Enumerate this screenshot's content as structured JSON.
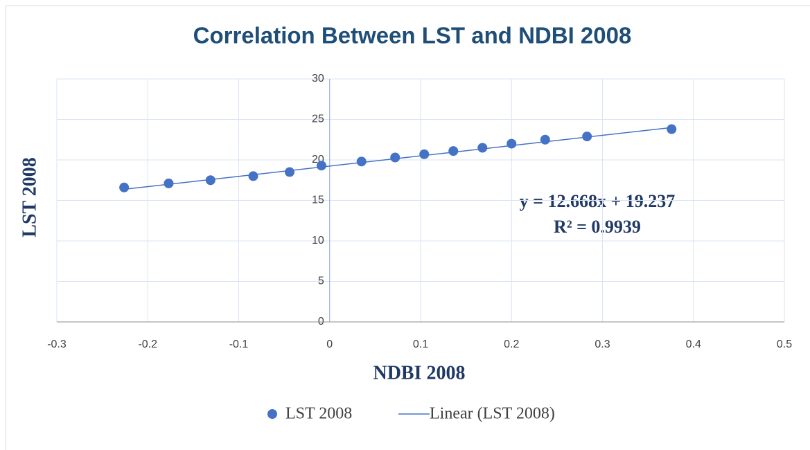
{
  "chart_data": {
    "type": "scatter",
    "title": "Correlation Between LST and NDBI 2008",
    "x_label": "NDBI 2008",
    "y_label": "LST 2008",
    "series": [
      {
        "name": "LST 2008",
        "color": "#4472c4",
        "x": [
          -0.226,
          -0.177,
          -0.131,
          -0.084,
          -0.044,
          -0.009,
          0.035,
          0.072,
          0.104,
          0.136,
          0.168,
          0.2,
          0.237,
          0.283,
          0.376
        ],
        "values": [
          16.6,
          17.1,
          17.5,
          18.0,
          18.5,
          19.3,
          19.8,
          20.3,
          20.7,
          21.1,
          21.5,
          22.0,
          22.5,
          22.9,
          23.8
        ]
      }
    ],
    "trendline": {
      "name": "Linear (LST 2008)",
      "color": "#4472c4",
      "slope": 12.668,
      "intercept": 19.237,
      "equation": "y = 12.668x + 19.237",
      "r_squared": "R² = 0.9939"
    },
    "xlim": [
      -0.3,
      0.5
    ],
    "xticks": [
      -0.3,
      -0.2,
      -0.1,
      0,
      0.1,
      0.2,
      0.3,
      0.4,
      0.5
    ],
    "ylim": [
      0,
      30
    ],
    "yticks": [
      0,
      5,
      10,
      15,
      20,
      25,
      30
    ],
    "grid": true
  }
}
